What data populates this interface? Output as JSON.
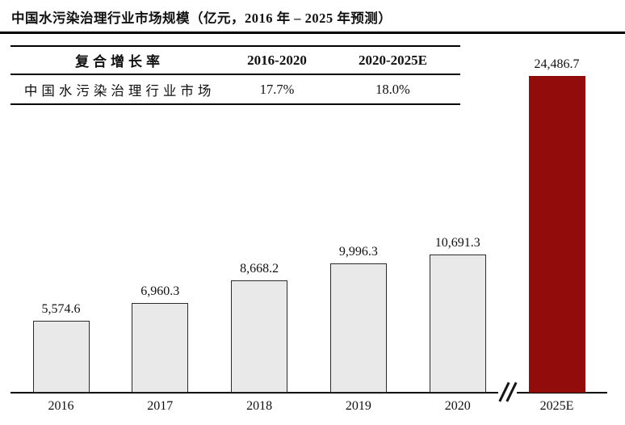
{
  "title": "中国水污染治理行业市场规模（亿元，2016 年 – 2025 年预测）",
  "growth_table": {
    "headers": [
      "复合增长率",
      "2016-2020",
      "2020-2025E"
    ],
    "row": {
      "label": "中国水污染治理行业市场",
      "cagr_2016_2020": "17.7%",
      "cagr_2020_2025e": "18.0%"
    }
  },
  "chart_data": {
    "type": "bar",
    "title": "中国水污染治理行业市场规模（亿元，2016 年 – 2025 年预测）",
    "unit": "亿元",
    "categories": [
      "2016",
      "2017",
      "2018",
      "2019",
      "2020",
      "2025E"
    ],
    "values": [
      5574.6,
      6960.3,
      8668.2,
      9996.3,
      10691.3,
      24486.7
    ],
    "value_labels": [
      "5,574.6",
      "6,960.3",
      "8,668.2",
      "9,996.3",
      "10,691.3",
      "24,486.7"
    ],
    "highlight_category": "2025E",
    "axis_break_between": [
      "2020",
      "2025E"
    ],
    "ylim": [
      0,
      25000
    ],
    "grid": false,
    "legend": false,
    "xlabel": "",
    "ylabel": ""
  },
  "colors": {
    "bar_fill": "#e9e9e9",
    "bar_border": "#2b2b2b",
    "highlight_bar": "#930c0c",
    "rule": "#000000",
    "text": "#111111"
  }
}
